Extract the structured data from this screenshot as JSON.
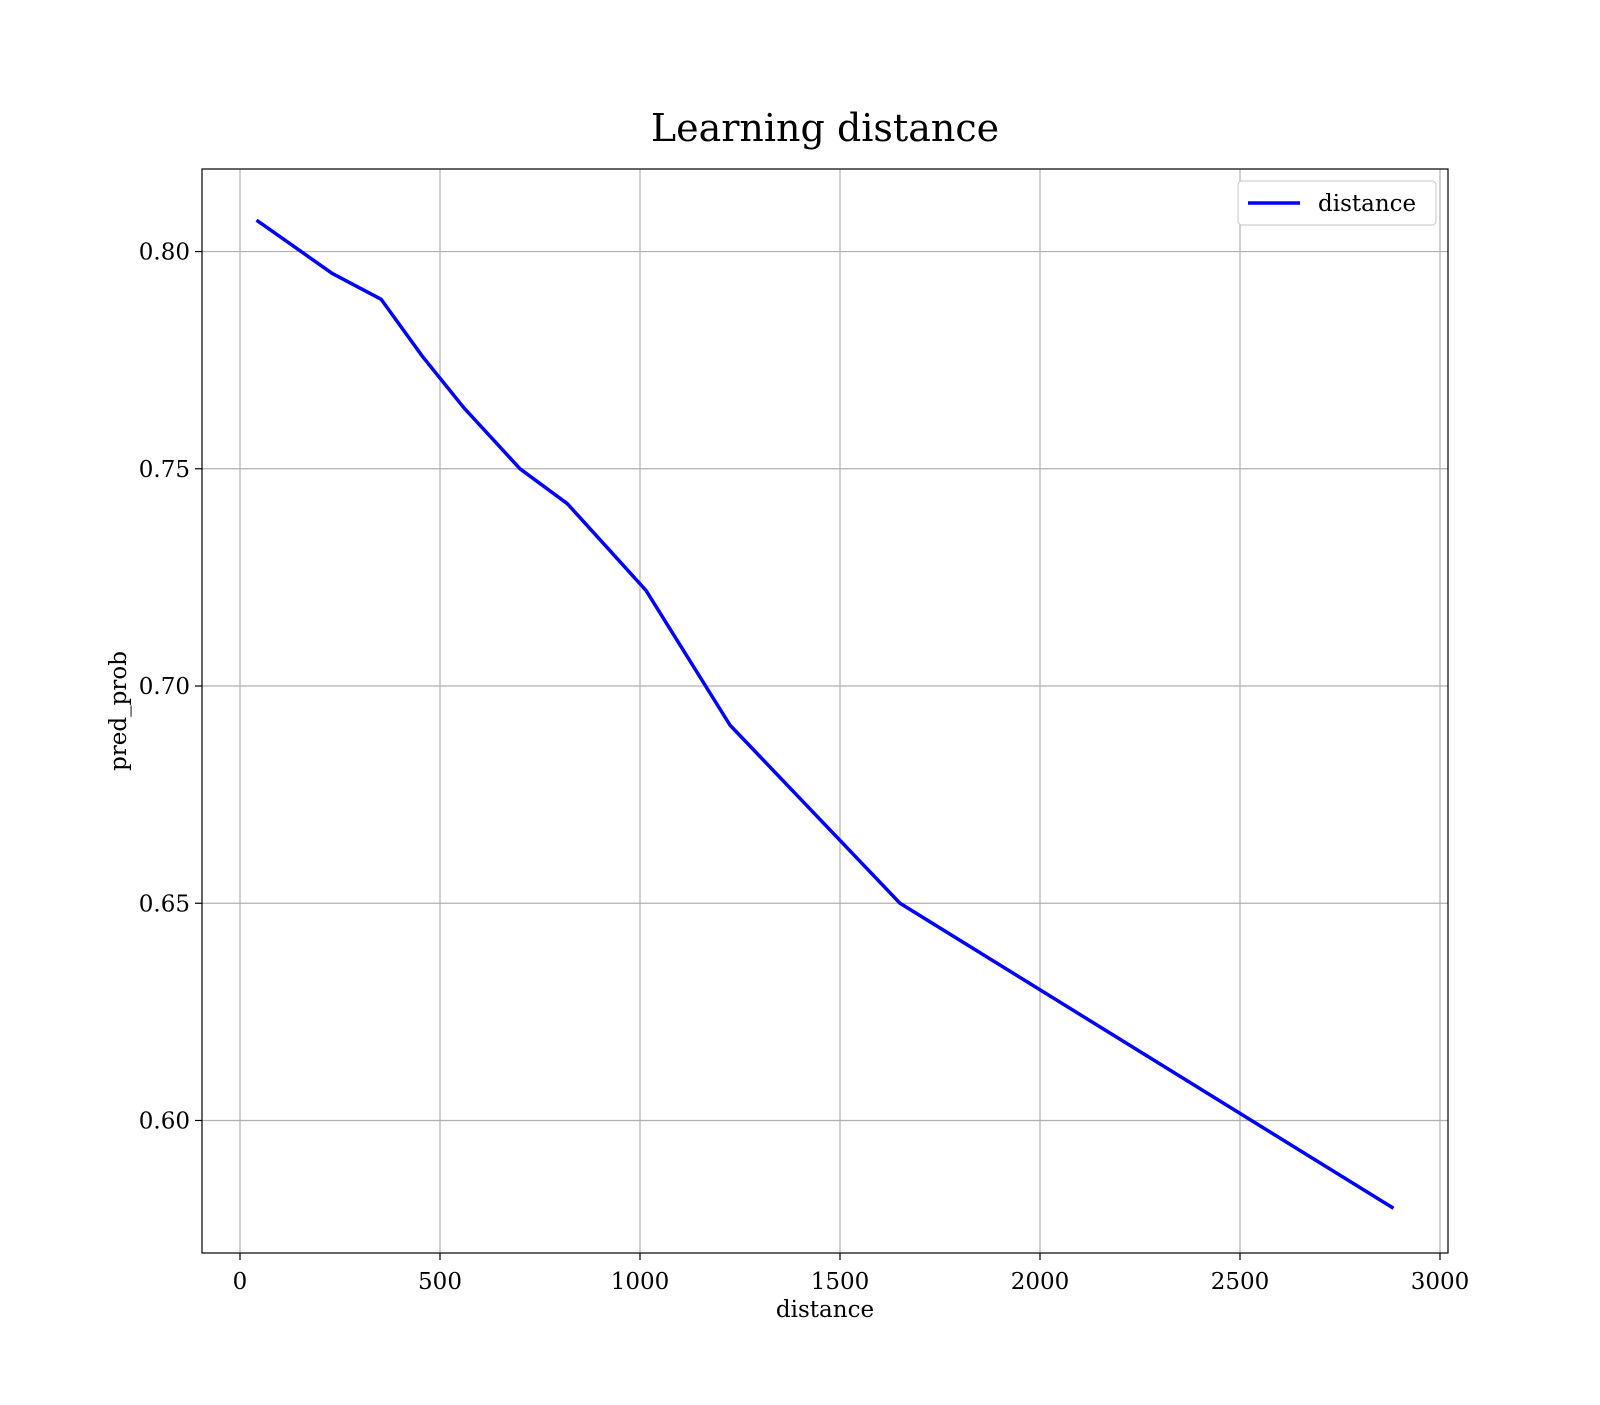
{
  "chart_data": {
    "type": "line",
    "title": "Learning distance",
    "xlabel": "distance",
    "ylabel": "pred_prob",
    "xlim": [
      -95,
      3020
    ],
    "ylim": [
      0.5695,
      0.819
    ],
    "xticks": [
      0,
      500,
      1000,
      1500,
      2000,
      2500,
      3000
    ],
    "yticks": [
      0.6,
      0.65,
      0.7,
      0.75,
      0.8
    ],
    "xtick_labels": [
      "0",
      "500",
      "1000",
      "1500",
      "2000",
      "2500",
      "3000"
    ],
    "ytick_labels": [
      "0.60",
      "0.65",
      "0.70",
      "0.75",
      "0.80"
    ],
    "grid": true,
    "legend": {
      "position": "top-right",
      "entries": [
        "distance"
      ]
    },
    "colors": {
      "line": "#0000ff"
    },
    "series": [
      {
        "name": "distance",
        "x": [
          45,
          230,
          353,
          455,
          560,
          700,
          818,
          1015,
          1225,
          1650,
          2880
        ],
        "y": [
          0.807,
          0.795,
          0.789,
          0.776,
          0.764,
          0.75,
          0.742,
          0.722,
          0.691,
          0.65,
          0.58
        ]
      }
    ]
  }
}
